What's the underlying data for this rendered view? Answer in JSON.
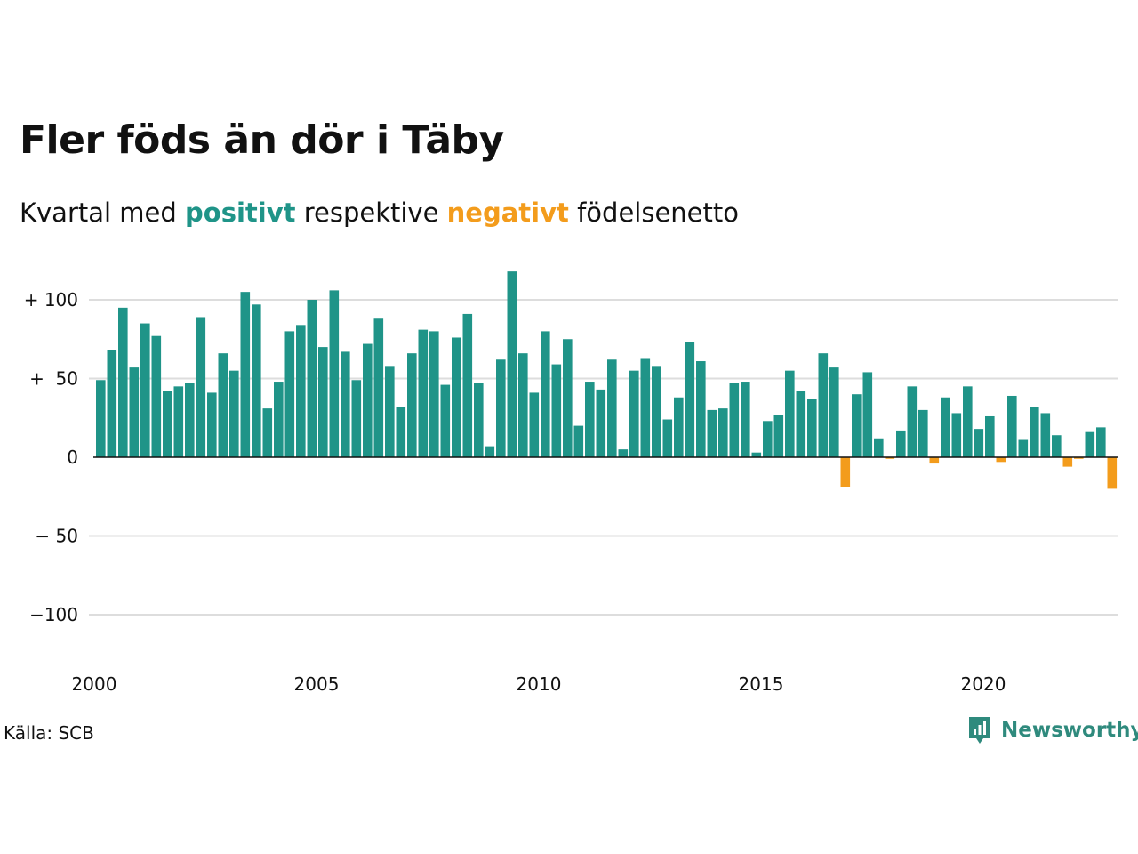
{
  "title": "Fler föds än dör i Täby",
  "subtitle": {
    "prefix": "Kvartal med ",
    "positive": "positivt",
    "middle": " respektive ",
    "negative": "negativt",
    "suffix": " födelsenetto"
  },
  "source": "Källa: SCB",
  "brand": "Newsworthy",
  "brand_icon": "newsworthy-logo-icon",
  "colors": {
    "positive": "#1f9488",
    "negative": "#f39c1c",
    "grid": "#dddddd",
    "zero_line": "#111111",
    "brand": "#2f8a7d"
  },
  "chart_data": {
    "type": "bar",
    "title": "Fler föds än dör i Täby",
    "subtitle": "Kvartal med positivt respektive negativt födelsenetto",
    "x_start": "2000 Q1",
    "x_ticks": [
      "2000",
      "2005",
      "2010",
      "2015",
      "2020"
    ],
    "y_ticks": [
      100,
      50,
      0,
      -50,
      -100
    ],
    "y_tick_labels": [
      "+ 100",
      "+  50",
      "0",
      "− 50",
      "−100"
    ],
    "ylim": [
      -125,
      120
    ],
    "grid": true,
    "values": [
      49,
      68,
      95,
      57,
      85,
      77,
      42,
      45,
      47,
      89,
      41,
      66,
      55,
      105,
      97,
      31,
      48,
      80,
      84,
      100,
      70,
      106,
      67,
      49,
      72,
      88,
      58,
      32,
      66,
      81,
      80,
      46,
      76,
      91,
      47,
      7,
      62,
      118,
      66,
      41,
      80,
      59,
      75,
      20,
      48,
      43,
      62,
      5,
      55,
      63,
      58,
      24,
      38,
      73,
      61,
      30,
      31,
      47,
      48,
      3,
      23,
      27,
      55,
      42,
      37,
      66,
      57,
      -19,
      40,
      54,
      12,
      -1,
      17,
      45,
      30,
      -4,
      38,
      28,
      45,
      18,
      26,
      -3,
      39,
      11,
      32,
      28,
      14,
      -6,
      -1,
      16,
      19,
      -20
    ]
  }
}
